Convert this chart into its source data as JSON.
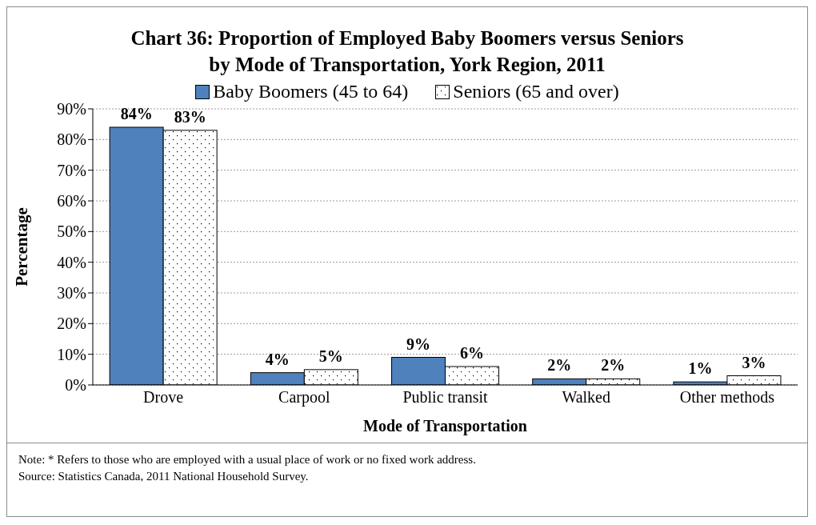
{
  "chart_data": {
    "type": "bar",
    "title": "Chart 36: Proportion of Employed Baby Boomers versus Seniors by Mode of Transportation, York Region, 2011",
    "categories": [
      "Drove",
      "Carpool",
      "Public transit",
      "Walked",
      "Other methods"
    ],
    "series": [
      {
        "name": "Baby Boomers (45 to 64)",
        "color": "#4f81bd",
        "values": [
          84,
          4,
          9,
          2,
          1
        ],
        "value_labels": [
          "84%",
          "4%",
          "9%",
          "2%",
          "1%"
        ]
      },
      {
        "name": "Seniors (65 and over)",
        "color": "#ffffff",
        "values": [
          83,
          5,
          6,
          2,
          3
        ],
        "value_labels": [
          "83%",
          "5%",
          "6%",
          "2%",
          "3%"
        ]
      }
    ],
    "ylim": [
      0,
      90
    ],
    "yticks": [
      {
        "value": 0,
        "label": "0%"
      },
      {
        "value": 10,
        "label": "10%"
      },
      {
        "value": 20,
        "label": "20%"
      },
      {
        "value": 30,
        "label": "30%"
      },
      {
        "value": 40,
        "label": "40%"
      },
      {
        "value": 50,
        "label": "50%"
      },
      {
        "value": 60,
        "label": "60%"
      },
      {
        "value": 70,
        "label": "70%"
      },
      {
        "value": 80,
        "label": "80%"
      },
      {
        "value": 90,
        "label": "90%"
      }
    ],
    "grid": "y",
    "legend": "top",
    "ylabel": "Percentage",
    "xlabel": "Mode of Transportation",
    "annotations": [
      "Note: * Refers to those who are employed with a usual place of work or no fixed work address.",
      "Source: Statistics Canada, 2011 National Household Survey."
    ]
  }
}
